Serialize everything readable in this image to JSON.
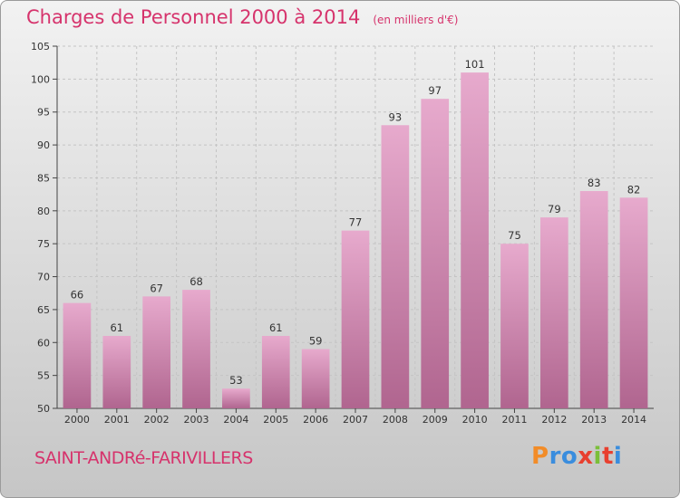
{
  "header": {
    "title": "Charges de Personnel 2000 à 2014",
    "unit": "(en milliers d'€)"
  },
  "footer": {
    "commune": "SAINT-ANDRé-FARIVILLERS",
    "logo": [
      "P",
      "r",
      "o",
      "x",
      "i",
      "t",
      "i"
    ],
    "logo_colors": [
      "#f28c28",
      "#3a8dde",
      "#3a8dde",
      "#e8402f",
      "#7bbf3a",
      "#e8402f",
      "#3a8dde"
    ]
  },
  "colors": {
    "title": "#d6336c",
    "bar_light": "#e7aacd",
    "bar_dark": "#b0658f",
    "grid": "#c4c4c4",
    "axis": "#444444"
  },
  "chart_data": {
    "type": "bar",
    "categories": [
      "2000",
      "2001",
      "2002",
      "2003",
      "2004",
      "2005",
      "2006",
      "2007",
      "2008",
      "2009",
      "2010",
      "2011",
      "2012",
      "2013",
      "2014"
    ],
    "values": [
      66,
      61,
      67,
      68,
      53,
      61,
      59,
      77,
      93,
      97,
      101,
      75,
      79,
      83,
      82
    ],
    "ylim": [
      50,
      105
    ],
    "yticks": [
      50,
      55,
      60,
      65,
      70,
      75,
      80,
      85,
      90,
      95,
      100,
      105
    ],
    "grid": true,
    "title": "Charges de Personnel 2000 à 2014",
    "xlabel": "",
    "ylabel": ""
  }
}
